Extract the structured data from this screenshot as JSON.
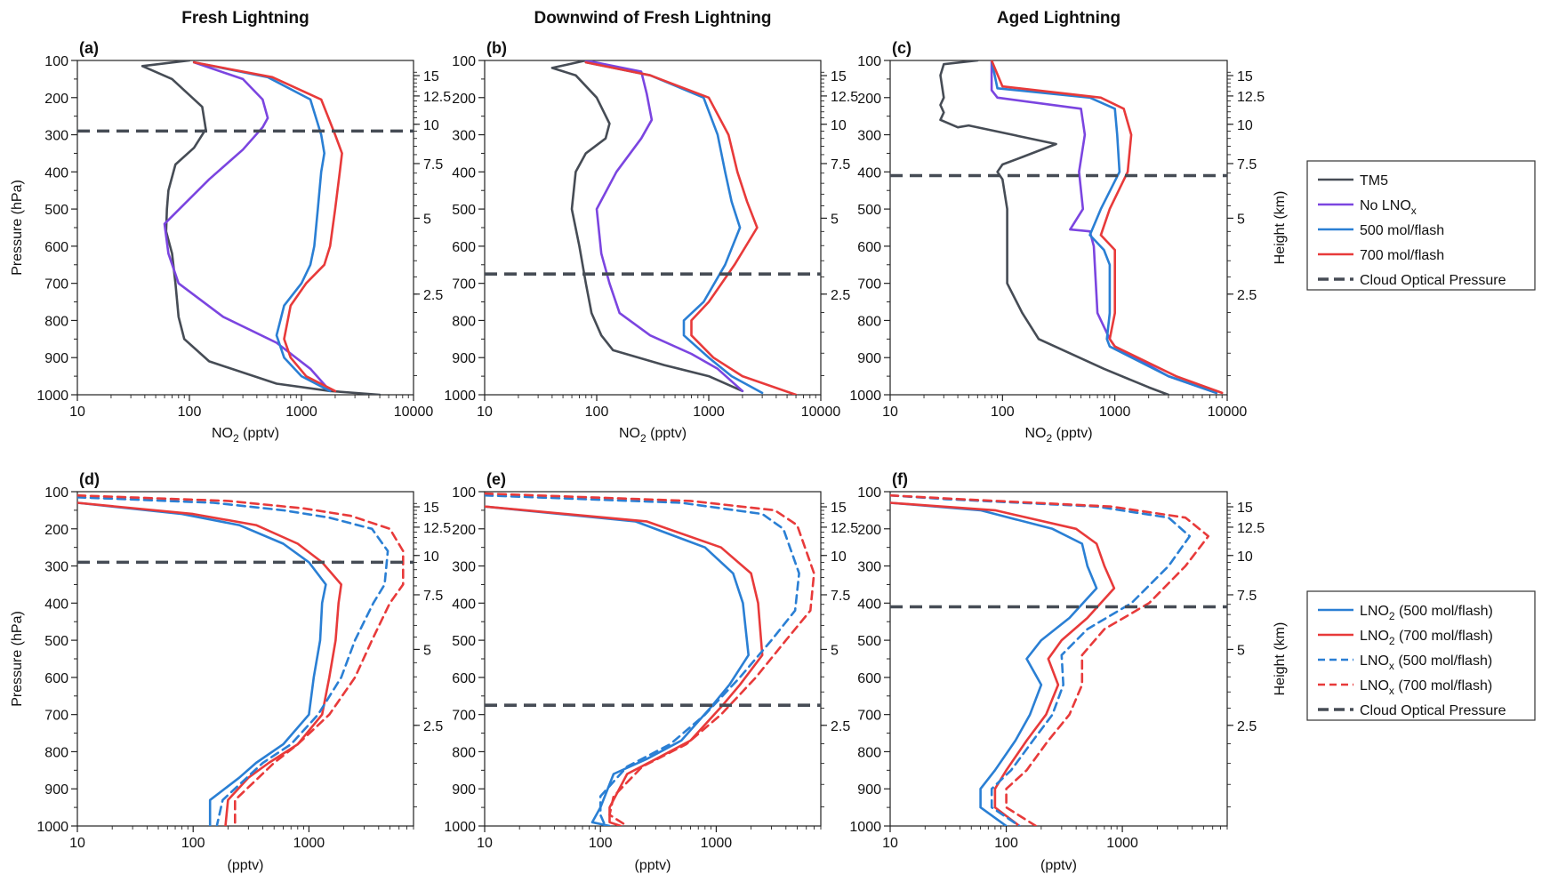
{
  "column_titles": [
    "Fresh Lightning",
    "Downwind of Fresh Lightning",
    "Aged Lightning"
  ],
  "legend_top": [
    {
      "key": "tm5",
      "label": "TM5",
      "color": "#464c55",
      "dash": false
    },
    {
      "key": "nolno",
      "label": "No LNO",
      "sub": "x",
      "color": "#7b45e0",
      "dash": false
    },
    {
      "key": "m500",
      "label": "500 mol/flash",
      "color": "#2a7fd4",
      "dash": false
    },
    {
      "key": "m700",
      "label": "700 mol/flash",
      "color": "#e83a3a",
      "dash": false
    },
    {
      "key": "cop",
      "label": "Cloud Optical Pressure",
      "color": "#464c55",
      "dash": true
    }
  ],
  "legend_bottom": [
    {
      "key": "lno2_500",
      "label": "LNO",
      "sub": "2",
      "tail": " (500 mol/flash)",
      "color": "#2a7fd4",
      "dash": false
    },
    {
      "key": "lno2_700",
      "label": "LNO",
      "sub": "2",
      "tail": " (700 mol/flash)",
      "color": "#e83a3a",
      "dash": false
    },
    {
      "key": "lnox_500",
      "label": "LNO",
      "sub": "x",
      "tail": " (500 mol/flash)",
      "color": "#2a7fd4",
      "dash": true
    },
    {
      "key": "lnox_700",
      "label": "LNO",
      "sub": "x",
      "tail": " (700 mol/flash)",
      "color": "#e83a3a",
      "dash": true
    },
    {
      "key": "cop",
      "label": "Cloud Optical Pressure",
      "color": "#464c55",
      "dash": true
    }
  ],
  "axes": {
    "ylabel_left": "Pressure (hPa)",
    "ylabel_right": "Height (km)",
    "xlabel_top": "NO",
    "xlabel_top_sub": "2",
    "xlabel_top_tail": " (pptv)",
    "xlabel_bottom": "(pptv)",
    "y_ticks": [
      "100",
      "200",
      "300",
      "400",
      "500",
      "600",
      "700",
      "800",
      "900",
      "1000"
    ],
    "height_ticks": [
      "15",
      "12.5",
      "10",
      "7.5",
      "5",
      "2.5"
    ],
    "x_ticks_top": [
      "10",
      "100",
      "1000",
      "10000"
    ],
    "x_ticks_bottom": [
      "10",
      "100",
      "1000"
    ]
  },
  "chart_data": [
    {
      "panel": "(a)",
      "type": "line",
      "x_scale": "log",
      "xlim": [
        10,
        10000
      ],
      "ylim": [
        1000,
        100
      ],
      "xlabel": "NO2 (pptv)",
      "ylabel": "Pressure (hPa)",
      "cloud_optical_pressure": 290,
      "series": [
        {
          "name": "TM5",
          "x": [
            100,
            38,
            70,
            130,
            140,
            110,
            75,
            65,
            63,
            62,
            70,
            75,
            80,
            90,
            150,
            600,
            1800,
            5000
          ],
          "y": [
            100,
            115,
            150,
            225,
            285,
            335,
            380,
            450,
            500,
            560,
            620,
            700,
            790,
            850,
            910,
            970,
            990,
            1000
          ]
        },
        {
          "name": "No LNOx",
          "x": [
            110,
            300,
            450,
            500,
            450,
            300,
            150,
            60,
            65,
            80,
            200,
            600,
            1200,
            1800
          ],
          "y": [
            105,
            150,
            205,
            255,
            280,
            340,
            420,
            540,
            620,
            700,
            790,
            860,
            930,
            990
          ]
        },
        {
          "name": "500 mol/flash",
          "x": [
            110,
            500,
            1200,
            1500,
            1600,
            1500,
            1400,
            1300,
            1200,
            1000,
            700,
            600,
            700,
            1000,
            1800
          ],
          "y": [
            105,
            145,
            205,
            300,
            350,
            400,
            500,
            600,
            650,
            700,
            760,
            840,
            900,
            950,
            990
          ]
        },
        {
          "name": "700 mol/flash",
          "x": [
            110,
            550,
            1500,
            2000,
            2300,
            2200,
            2000,
            1800,
            1600,
            1100,
            800,
            700,
            800,
            1100,
            2000
          ],
          "y": [
            105,
            145,
            205,
            300,
            350,
            400,
            500,
            600,
            650,
            700,
            760,
            850,
            900,
            950,
            990
          ]
        }
      ]
    },
    {
      "panel": "(b)",
      "type": "line",
      "x_scale": "log",
      "xlim": [
        10,
        10000
      ],
      "ylim": [
        1000,
        100
      ],
      "xlabel": "NO2 (pptv)",
      "ylabel": "Pressure (hPa)",
      "cloud_optical_pressure": 675,
      "series": [
        {
          "name": "TM5",
          "x": [
            80,
            40,
            65,
            100,
            130,
            120,
            80,
            65,
            60,
            70,
            80,
            90,
            110,
            140,
            400,
            1000,
            2000
          ],
          "y": [
            100,
            120,
            140,
            200,
            270,
            310,
            350,
            400,
            500,
            600,
            700,
            780,
            840,
            880,
            920,
            950,
            990
          ]
        },
        {
          "name": "No LNOx",
          "x": [
            80,
            250,
            280,
            310,
            250,
            150,
            100,
            110,
            130,
            160,
            300,
            700,
            1200,
            2000
          ],
          "y": [
            100,
            130,
            190,
            260,
            310,
            400,
            500,
            620,
            700,
            780,
            840,
            890,
            930,
            990
          ]
        },
        {
          "name": "500 mol/flash",
          "x": [
            80,
            300,
            900,
            1200,
            1400,
            1600,
            1900,
            1400,
            900,
            600,
            600,
            1000,
            1600,
            3000
          ],
          "y": [
            105,
            140,
            200,
            300,
            400,
            480,
            550,
            650,
            750,
            800,
            840,
            900,
            950,
            995
          ]
        },
        {
          "name": "700 mol/flash",
          "x": [
            80,
            300,
            1000,
            1500,
            1800,
            2200,
            2700,
            1700,
            1000,
            700,
            700,
            1100,
            2000,
            6000
          ],
          "y": [
            105,
            140,
            200,
            300,
            400,
            480,
            550,
            650,
            750,
            800,
            840,
            900,
            950,
            1000
          ]
        }
      ]
    },
    {
      "panel": "(c)",
      "type": "line",
      "x_scale": "log",
      "xlim": [
        10,
        10000
      ],
      "ylim": [
        1000,
        100
      ],
      "xlabel": "NO2 (pptv)",
      "ylabel": "Pressure (hPa)",
      "cloud_optical_pressure": 410,
      "series": [
        {
          "name": "TM5",
          "x": [
            60,
            30,
            28,
            30,
            28,
            30,
            28,
            40,
            50,
            300,
            150,
            100,
            90,
            100,
            110,
            110,
            110,
            150,
            210,
            800,
            2000,
            3000
          ],
          "y": [
            100,
            110,
            140,
            200,
            220,
            240,
            260,
            280,
            275,
            325,
            360,
            380,
            400,
            420,
            500,
            560,
            700,
            780,
            850,
            930,
            980,
            1000
          ]
        },
        {
          "name": "No LNOx",
          "x": [
            80,
            80,
            90,
            500,
            540,
            480,
            520,
            400,
            600,
            650,
            700,
            900,
            1000,
            3000,
            8000
          ],
          "y": [
            100,
            180,
            200,
            230,
            300,
            400,
            500,
            555,
            560,
            600,
            780,
            850,
            870,
            950,
            995
          ]
        },
        {
          "name": "500 mol/flash",
          "x": [
            80,
            90,
            600,
            1000,
            1050,
            1100,
            750,
            600,
            800,
            900,
            900,
            850,
            900,
            3000,
            8000
          ],
          "y": [
            100,
            175,
            200,
            230,
            300,
            400,
            500,
            570,
            610,
            650,
            780,
            850,
            870,
            950,
            995
          ]
        },
        {
          "name": "700 mol/flash",
          "x": [
            80,
            100,
            750,
            1200,
            1400,
            1300,
            900,
            750,
            1000,
            1000,
            1000,
            900,
            1000,
            3500,
            9000
          ],
          "y": [
            100,
            170,
            200,
            230,
            300,
            400,
            500,
            570,
            610,
            650,
            780,
            850,
            870,
            950,
            995
          ]
        }
      ]
    },
    {
      "panel": "(d)",
      "type": "line",
      "x_scale": "log",
      "xlim": [
        10,
        8000
      ],
      "ylim": [
        1000,
        100
      ],
      "xlabel": "(pptv)",
      "ylabel": "Pressure (hPa)",
      "cloud_optical_pressure": 290,
      "series": [
        {
          "name": "LNO2 (500 mol/flash)",
          "x": [
            10,
            80,
            250,
            600,
            1000,
            1400,
            1300,
            1250,
            1100,
            1000,
            600,
            350,
            250,
            140,
            140
          ],
          "y": [
            130,
            160,
            190,
            240,
            290,
            350,
            400,
            500,
            600,
            700,
            780,
            830,
            870,
            930,
            1000
          ]
        },
        {
          "name": "LNO2 (700 mol/flash)",
          "x": [
            10,
            100,
            350,
            800,
            1300,
            1900,
            1800,
            1700,
            1500,
            1300,
            800,
            450,
            300,
            200,
            190
          ],
          "y": [
            130,
            160,
            190,
            240,
            290,
            350,
            400,
            500,
            600,
            700,
            780,
            830,
            870,
            930,
            1000
          ]
        },
        {
          "name": "LNOx (500 mol/flash)",
          "x": [
            10,
            150,
            600,
            1500,
            3500,
            4800,
            4500,
            3600,
            2500,
            1900,
            1200,
            700,
            400,
            180,
            160
          ],
          "y": [
            115,
            130,
            150,
            170,
            200,
            260,
            350,
            400,
            500,
            600,
            700,
            780,
            830,
            930,
            1000
          ]
        },
        {
          "name": "LNOx (700 mol/flash)",
          "x": [
            10,
            200,
            900,
            2300,
            5000,
            6500,
            6500,
            5000,
            3500,
            2500,
            1500,
            800,
            500,
            230,
            230
          ],
          "y": [
            110,
            125,
            145,
            165,
            200,
            260,
            350,
            400,
            500,
            600,
            700,
            780,
            830,
            930,
            1000
          ]
        }
      ]
    },
    {
      "panel": "(e)",
      "type": "line",
      "x_scale": "log",
      "xlim": [
        10,
        8000
      ],
      "ylim": [
        1000,
        100
      ],
      "xlabel": "(pptv)",
      "ylabel": "Pressure (hPa)",
      "cloud_optical_pressure": 675,
      "series": [
        {
          "name": "LNO2 (500 mol/flash)",
          "x": [
            10,
            200,
            800,
            1400,
            1700,
            1900,
            1300,
            900,
            500,
            250,
            130,
            100,
            85,
            120
          ],
          "y": [
            140,
            180,
            250,
            320,
            400,
            540,
            620,
            680,
            770,
            820,
            860,
            950,
            990,
            1000
          ]
        },
        {
          "name": "LNO2 (700 mol/flash)",
          "x": [
            10,
            250,
            1100,
            2000,
            2300,
            2500,
            1600,
            1100,
            600,
            300,
            170,
            120,
            120,
            150
          ],
          "y": [
            140,
            180,
            250,
            320,
            400,
            540,
            620,
            680,
            770,
            820,
            860,
            950,
            990,
            1000
          ]
        },
        {
          "name": "LNOx (500 mol/flash)",
          "x": [
            10,
            500,
            2500,
            3800,
            5200,
            4800,
            3000,
            1600,
            800,
            400,
            170,
            100,
            100,
            110
          ],
          "y": [
            110,
            130,
            160,
            200,
            320,
            420,
            500,
            600,
            700,
            780,
            840,
            920,
            970,
            1000
          ]
        },
        {
          "name": "LNOx (700 mol/flash)",
          "x": [
            10,
            600,
            3200,
            5000,
            7000,
            6500,
            4000,
            2200,
            1100,
            550,
            230,
            130,
            120,
            170
          ],
          "y": [
            105,
            125,
            150,
            190,
            320,
            420,
            500,
            600,
            700,
            780,
            840,
            920,
            970,
            1000
          ]
        }
      ]
    },
    {
      "panel": "(f)",
      "type": "line",
      "x_scale": "log",
      "xlim": [
        10,
        8000
      ],
      "ylim": [
        1000,
        100
      ],
      "xlabel": "(pptv)",
      "ylabel": "Pressure (hPa)",
      "cloud_optical_pressure": 410,
      "series": [
        {
          "name": "LNO2 (500 mol/flash)",
          "x": [
            10,
            60,
            250,
            450,
            500,
            600,
            350,
            200,
            150,
            200,
            160,
            120,
            80,
            60,
            60,
            100
          ],
          "y": [
            130,
            150,
            200,
            240,
            300,
            360,
            440,
            500,
            550,
            620,
            700,
            770,
            850,
            900,
            950,
            1000
          ]
        },
        {
          "name": "LNO2 (700 mol/flash)",
          "x": [
            10,
            80,
            400,
            600,
            700,
            850,
            500,
            300,
            230,
            280,
            220,
            150,
            100,
            80,
            80,
            130
          ],
          "y": [
            130,
            150,
            200,
            240,
            300,
            360,
            440,
            500,
            550,
            620,
            700,
            770,
            850,
            900,
            950,
            1000
          ]
        },
        {
          "name": "LNOx (500 mol/flash)",
          "x": [
            10,
            30,
            600,
            2500,
            3800,
            2500,
            1200,
            500,
            300,
            310,
            250,
            170,
            110,
            75,
            75,
            130
          ],
          "y": [
            110,
            120,
            140,
            170,
            220,
            300,
            400,
            470,
            540,
            620,
            700,
            770,
            850,
            900,
            950,
            1000
          ]
        },
        {
          "name": "LNOx (700 mol/flash)",
          "x": [
            10,
            40,
            800,
            3500,
            5500,
            3500,
            1700,
            700,
            450,
            450,
            350,
            230,
            150,
            100,
            100,
            180
          ],
          "y": [
            110,
            120,
            140,
            170,
            220,
            300,
            400,
            470,
            540,
            620,
            700,
            770,
            850,
            900,
            950,
            1000
          ]
        }
      ]
    }
  ]
}
